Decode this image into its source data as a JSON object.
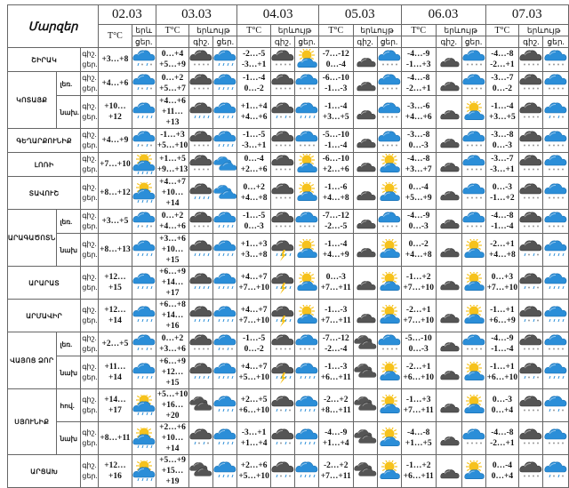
{
  "header": {
    "title": "Մարզեր",
    "dates": [
      "02.03",
      "03.03",
      "04.03",
      "05.03",
      "06.03",
      "07.03"
    ],
    "temp_label": "T°C",
    "phen_label": "երևույթ",
    "phen_label_short": "երև",
    "night_label": "գիշ.",
    "day_label": "ցեր.",
    "day_label_short": "ցեր.",
    "night_day_label": "գիշ. ցեր."
  },
  "rows": [
    {
      "region": "ՇԻՐԱԿ",
      "sub": "",
      "d02": {
        "day": "+3…+8",
        "icon": "blue-rain-snow"
      },
      "days": [
        {
          "night": "0…+4",
          "day": "+5…+9",
          "icons": [
            "dark-snow",
            "blue-rain"
          ]
        },
        {
          "night": "-2…-5",
          "day": "-3…+1",
          "icons": [
            "dark-snow",
            "sun-cloud"
          ]
        },
        {
          "night": "-7…-12",
          "day": "0…-4",
          "icons": [
            "moon-cloud",
            "blue-snow"
          ]
        },
        {
          "night": "-4…-9",
          "day": "-1…+3",
          "icons": [
            "moon-cloud",
            "blue-snow"
          ]
        },
        {
          "night": "-4…-8",
          "day": "-2…+1",
          "icons": [
            "dark-snow",
            "blue-snow"
          ]
        }
      ]
    },
    {
      "region": "ԿՈՏԱՅՔ",
      "sub": "լեռ.",
      "d02": {
        "day": "+4…+6",
        "icon": "blue-rain-snow"
      },
      "days": [
        {
          "night": "0…+2",
          "day": "+5…+7",
          "icons": [
            "dark-snow",
            "blue-rain"
          ]
        },
        {
          "night": "-1…-4",
          "day": "0…-2",
          "icons": [
            "dark-snow",
            "blue-snow"
          ]
        },
        {
          "night": "-6…-10",
          "day": "-1…-3",
          "icons": [
            "moon-cloud",
            "blue-snow"
          ]
        },
        {
          "night": "-4…-8",
          "day": "-2…+1",
          "icons": [
            "moon-cloud",
            "blue-snow"
          ]
        },
        {
          "night": "-3…-7",
          "day": "0…-2",
          "icons": [
            "dark-snow",
            "blue-snow"
          ]
        }
      ]
    },
    {
      "region": "ԿՈՏԱՅՔ",
      "sub": "նախ.",
      "d02": {
        "day": "+10…+12",
        "icon": "blue-rain"
      },
      "days": [
        {
          "night": "+4…+6",
          "day": "+11…+13",
          "icons": [
            "dark-rain",
            "blue-rain"
          ]
        },
        {
          "night": "+1…+4",
          "day": "+4…+6",
          "icons": [
            "dark-rain-snow",
            "blue-rain"
          ]
        },
        {
          "night": "-1…-4",
          "day": "+3…+5",
          "icons": [
            "moon-cloud",
            "blue-snow"
          ]
        },
        {
          "night": "-3…-6",
          "day": "+4…+6",
          "icons": [
            "moon-cloud",
            "sun-cloud"
          ]
        },
        {
          "night": "-1…-4",
          "day": "+3…+5",
          "icons": [
            "dark-snow",
            "blue-rain-snow"
          ]
        }
      ]
    },
    {
      "region": "ԳԵՂԱՐՔՈՒՆԻՔ",
      "sub": "",
      "d02": {
        "day": "+4…+9",
        "icon": "blue-rain-snow"
      },
      "days": [
        {
          "night": "-1…+3",
          "day": "+5…+10",
          "icons": [
            "dark-snow",
            "blue-rain"
          ]
        },
        {
          "night": "-1…-5",
          "day": "-3…+1",
          "icons": [
            "dark-snow",
            "blue-snow"
          ]
        },
        {
          "night": "-5…-10",
          "day": "-1…-4",
          "icons": [
            "moon-cloud",
            "blue-snow"
          ]
        },
        {
          "night": "-3…-8",
          "day": "0…-3",
          "icons": [
            "moon-cloud",
            "blue-snow"
          ]
        },
        {
          "night": "-3…-8",
          "day": "0…-3",
          "icons": [
            "dark-snow",
            "blue-snow"
          ]
        }
      ]
    },
    {
      "region": "ԼՈՌԻ",
      "sub": "",
      "d02": {
        "day": "+7…+10",
        "icon": "sun-cloud-rain"
      },
      "days": [
        {
          "night": "+1…+5",
          "day": "+9…+13",
          "icons": [
            "dark-snow",
            "blue-clouds"
          ]
        },
        {
          "night": "0…-4",
          "day": "+2…+6",
          "icons": [
            "dark-snow",
            "sun-cloud"
          ]
        },
        {
          "night": "-6…-10",
          "day": "+2…+6",
          "icons": [
            "moon-cloud",
            "sun-cloud"
          ]
        },
        {
          "night": "-4…-8",
          "day": "+3…+7",
          "icons": [
            "moon-cloud",
            "blue-snow"
          ]
        },
        {
          "night": "-3…-7",
          "day": "-3…+1",
          "icons": [
            "dark-snow",
            "blue-snow"
          ]
        }
      ]
    },
    {
      "region": "ՏԱՎՈՒՇ",
      "sub": "",
      "d02": {
        "day": "+8…+12",
        "icon": "sun-cloud-rain"
      },
      "days": [
        {
          "night": "+4…+7",
          "day": "+10…+14",
          "icons": [
            "dark-rain",
            "blue-clouds"
          ]
        },
        {
          "night": "0…+2",
          "day": "+4…+8",
          "icons": [
            "dark-snow",
            "sun-cloud"
          ]
        },
        {
          "night": "-1…-6",
          "day": "+4…+8",
          "icons": [
            "moon-cloud",
            "sun-cloud"
          ]
        },
        {
          "night": "0…-4",
          "day": "+5…+9",
          "icons": [
            "moon-cloud",
            "blue-snow"
          ]
        },
        {
          "night": "0…-3",
          "day": "-1…+2",
          "icons": [
            "dark-snow",
            "blue-snow"
          ]
        }
      ]
    },
    {
      "region": "ԱՐԱԳԱԾՈՏՆ",
      "sub": "լեռ.",
      "d02": {
        "day": "+3…+5",
        "icon": "blue-rain-snow"
      },
      "days": [
        {
          "night": "0…+2",
          "day": "+4…+6",
          "icons": [
            "dark-snow",
            "blue-rain"
          ]
        },
        {
          "night": "-1…-5",
          "day": "0…-3",
          "icons": [
            "dark-snow",
            "blue-snow"
          ]
        },
        {
          "night": "-7…-12",
          "day": "-2…-5",
          "icons": [
            "moon-cloud",
            "blue-snow"
          ]
        },
        {
          "night": "-4…-9",
          "day": "0…-3",
          "icons": [
            "moon-cloud",
            "blue-snow"
          ]
        },
        {
          "night": "-4…-8",
          "day": "-1…-4",
          "icons": [
            "dark-snow",
            "blue-snow"
          ]
        }
      ]
    },
    {
      "region": "ԱՐԱԳԱԾՈՏՆ",
      "sub": "նախ",
      "d02": {
        "day": "+8…+13",
        "icon": "blue-rain"
      },
      "days": [
        {
          "night": "+3…+6",
          "day": "+10…+15",
          "icons": [
            "dark-rain",
            "blue-rain"
          ]
        },
        {
          "night": "+1…+3",
          "day": "+3…+8",
          "icons": [
            "thunderstorm",
            "sun-cloud"
          ]
        },
        {
          "night": "-1…-4",
          "day": "+4…+9",
          "icons": [
            "moon-cloud",
            "sun-cloud"
          ]
        },
        {
          "night": "0…-2",
          "day": "+4…+8",
          "icons": [
            "moon-cloud",
            "sun-cloud"
          ]
        },
        {
          "night": "-2…+1",
          "day": "+4…+8",
          "icons": [
            "dark-rain-snow",
            "blue-rain"
          ]
        }
      ]
    },
    {
      "region": "ԱՐԱՐԱՏ",
      "sub": "",
      "d02": {
        "day": "+12…+15",
        "icon": "blue-rain"
      },
      "days": [
        {
          "night": "+6…+9",
          "day": "+14…+17",
          "icons": [
            "dark-rain",
            "blue-rain"
          ]
        },
        {
          "night": "+4…+7",
          "day": "+7…+10",
          "icons": [
            "thunderstorm",
            "sun-cloud"
          ]
        },
        {
          "night": "0…-3",
          "day": "+7…+11",
          "icons": [
            "moon-cloud",
            "sun-cloud"
          ]
        },
        {
          "night": "-1…+2",
          "day": "+7…+10",
          "icons": [
            "moon-cloud",
            "sun-cloud"
          ]
        },
        {
          "night": "0…+3",
          "day": "+7…+10",
          "icons": [
            "dark-rain-snow",
            "blue-rain"
          ]
        }
      ]
    },
    {
      "region": "ԱՐՄԱՎԻՐ",
      "sub": "",
      "d02": {
        "day": "+12…+14",
        "icon": "blue-rain"
      },
      "days": [
        {
          "night": "+6…+8",
          "day": "+14…+16",
          "icons": [
            "dark-rain",
            "blue-rain"
          ]
        },
        {
          "night": "+4…+7",
          "day": "+7…+10",
          "icons": [
            "thunderstorm",
            "sun-cloud"
          ]
        },
        {
          "night": "-1…-3",
          "day": "+7…+11",
          "icons": [
            "moon-cloud",
            "sun-cloud"
          ]
        },
        {
          "night": "-2…+1",
          "day": "+7…+10",
          "icons": [
            "moon-cloud",
            "sun-cloud"
          ]
        },
        {
          "night": "-1…+1",
          "day": "+6…+9",
          "icons": [
            "dark-rain-snow",
            "blue-rain"
          ]
        }
      ]
    },
    {
      "region": "ՎԱՅՈՑ ՁՈՐ",
      "sub": "լեռ.",
      "d02": {
        "day": "+2…+5",
        "icon": "blue-rain-snow"
      },
      "days": [
        {
          "night": "0…+2",
          "day": "+3…+6",
          "icons": [
            "dark-snow",
            "blue-rain-snow"
          ]
        },
        {
          "night": "-1…-5",
          "day": "0…-2",
          "icons": [
            "dark-snow",
            "blue-snow"
          ]
        },
        {
          "night": "-7…-12",
          "day": "-2…-4",
          "icons": [
            "dark-clouds",
            "blue-snow"
          ]
        },
        {
          "night": "-5…-10",
          "day": "0…-3",
          "icons": [
            "moon-cloud",
            "blue-snow"
          ]
        },
        {
          "night": "-4…-9",
          "day": "-1…-4",
          "icons": [
            "dark-snow",
            "blue-snow"
          ]
        }
      ]
    },
    {
      "region": "ՎԱՅՈՑ ՁՈՐ",
      "sub": "նախ",
      "d02": {
        "day": "+11…+14",
        "icon": "blue-rain"
      },
      "days": [
        {
          "night": "+6…+9",
          "day": "+12…+15",
          "icons": [
            "dark-rain",
            "blue-rain"
          ]
        },
        {
          "night": "+4…+7",
          "day": "+5…+10",
          "icons": [
            "thunderstorm",
            "blue-rain"
          ]
        },
        {
          "night": "-1…-3",
          "day": "+6…+11",
          "icons": [
            "dark-clouds",
            "sun-cloud"
          ]
        },
        {
          "night": "-2…+1",
          "day": "+6…+10",
          "icons": [
            "moon-cloud",
            "sun-cloud"
          ]
        },
        {
          "night": "-1…+1",
          "day": "+6…+10",
          "icons": [
            "dark-rain-snow",
            "blue-rain"
          ]
        }
      ]
    },
    {
      "region": "ՍՅՈՒՆԻՔ",
      "sub": "հով.",
      "d02": {
        "day": "+14…+17",
        "icon": "sun-cloud-rain"
      },
      "days": [
        {
          "night": "+5…+10",
          "day": "+16…+20",
          "icons": [
            "dark-clouds",
            "blue-rain"
          ]
        },
        {
          "night": "+2…+5",
          "day": "+6…+10",
          "icons": [
            "dark-rain-snow",
            "blue-rain"
          ]
        },
        {
          "night": "-2…+2",
          "day": "+8…+11",
          "icons": [
            "dark-clouds",
            "sun-cloud"
          ]
        },
        {
          "night": "-1…+3",
          "day": "+7…+11",
          "icons": [
            "moon-cloud",
            "sun-cloud"
          ]
        },
        {
          "night": "0…-3",
          "day": "0…+4",
          "icons": [
            "dark-snow",
            "blue-rain-snow"
          ]
        }
      ]
    },
    {
      "region": "ՍՅՈՒՆԻՔ",
      "sub": "նախ",
      "d02": {
        "day": "+8…+11",
        "icon": "sun-cloud-rain"
      },
      "days": [
        {
          "night": "+2…+6",
          "day": "+10…+14",
          "icons": [
            "dark-rain-snow",
            "blue-rain"
          ]
        },
        {
          "night": "-3…+1",
          "day": "+1…+4",
          "icons": [
            "dark-rain-snow",
            "blue-rain"
          ]
        },
        {
          "night": "-4…-9",
          "day": "+1…+4",
          "icons": [
            "dark-clouds",
            "sun-cloud"
          ]
        },
        {
          "night": "-4…-8",
          "day": "+1…+5",
          "icons": [
            "moon-cloud",
            "blue-snow"
          ]
        },
        {
          "night": "-4…-8",
          "day": "-2…+1",
          "icons": [
            "dark-snow",
            "blue-snow"
          ]
        }
      ]
    },
    {
      "region": "ԱՐՑԱԽ",
      "sub": "",
      "d02": {
        "day": "+12…+16",
        "icon": "sun-cloud-rain"
      },
      "days": [
        {
          "night": "+5…+9",
          "day": "+15…+19",
          "icons": [
            "dark-clouds",
            "blue-rain"
          ]
        },
        {
          "night": "+2…+6",
          "day": "+5…+10",
          "icons": [
            "dark-rain-snow",
            "blue-rain"
          ]
        },
        {
          "night": "-2…+2",
          "day": "+7…+11",
          "icons": [
            "dark-clouds",
            "sun-cloud"
          ]
        },
        {
          "night": "-1…+2",
          "day": "+6…+11",
          "icons": [
            "moon-cloud",
            "sun-cloud"
          ]
        },
        {
          "night": "0…-4",
          "day": "0…+4",
          "icons": [
            "dark-snow",
            "blue-rain-snow"
          ]
        }
      ]
    }
  ],
  "colors": {
    "blue_cloud": "#2b8ed8",
    "dark_cloud": "#555555",
    "sun": "#f6c21c",
    "moon": "#e8961e",
    "border": "#666666"
  }
}
